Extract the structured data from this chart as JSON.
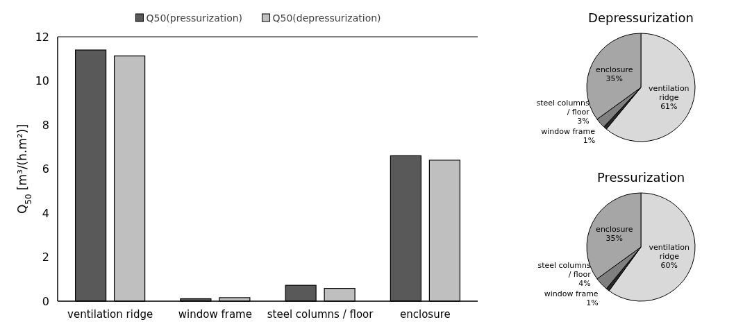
{
  "chart_data": [
    {
      "type": "bar",
      "categories": [
        "ventilation ridge",
        "window frame",
        "steel columns / floor",
        "enclosure"
      ],
      "series": [
        {
          "name": "Q50(pressurization)",
          "color": "#595959",
          "values": [
            11.4,
            0.11,
            0.72,
            6.6
          ]
        },
        {
          "name": "Q50(depressurization)",
          "color": "#bfbfbf",
          "values": [
            11.13,
            0.16,
            0.58,
            6.4
          ]
        }
      ],
      "ylabel": "Q$_{50}$ [m³/(h.m²)]",
      "ylim": [
        0,
        12
      ],
      "yticks": [
        0,
        2,
        4,
        6,
        8,
        10,
        12
      ],
      "legend": "top"
    },
    {
      "type": "pie",
      "title": "Depressurization",
      "categories": [
        "ventilation ridge",
        "window frame",
        "steel columns / floor",
        "enclosure"
      ],
      "values": [
        61,
        1,
        3,
        35
      ],
      "colors": [
        "#d9d9d9",
        "#262626",
        "#7f7f7f",
        "#a6a6a6"
      ],
      "value_labels": [
        "61%",
        "1%",
        "3%",
        "35%"
      ]
    },
    {
      "type": "pie",
      "title": "Pressurization",
      "categories": [
        "ventilation ridge",
        "window frame",
        "steel columns / floor",
        "enclosure"
      ],
      "values": [
        60,
        1,
        4,
        35
      ],
      "colors": [
        "#d9d9d9",
        "#262626",
        "#7f7f7f",
        "#a6a6a6"
      ],
      "value_labels": [
        "60%",
        "1%",
        "4%",
        "35%"
      ]
    }
  ]
}
